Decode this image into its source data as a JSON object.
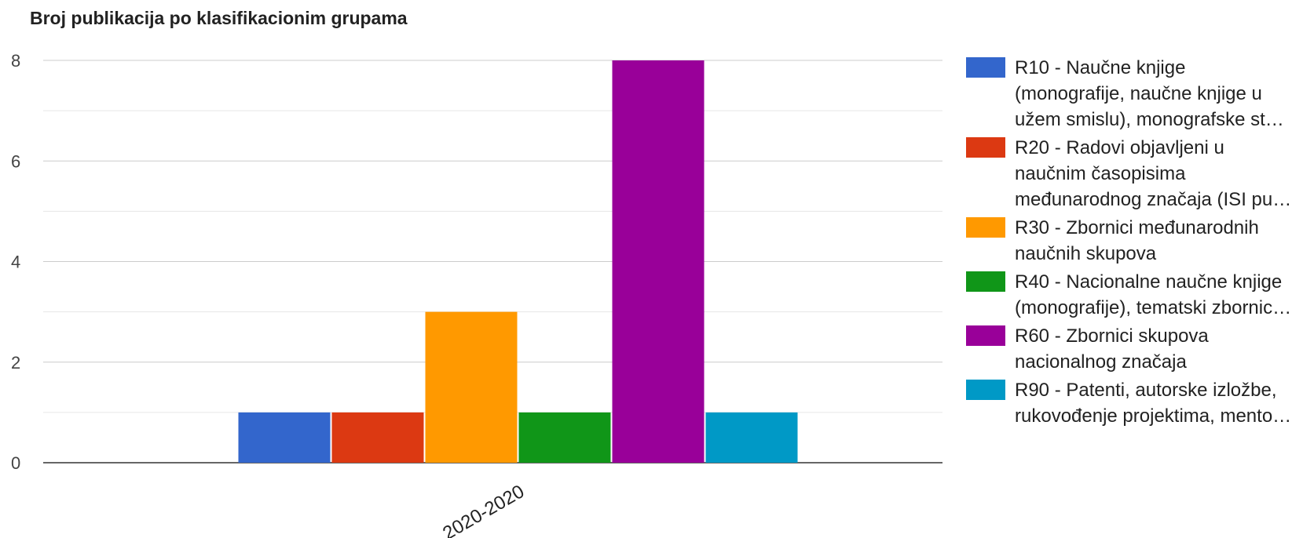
{
  "chart_data": {
    "type": "bar",
    "title": "Broj publikacija po klasifikacionim grupama",
    "categories": [
      "2020-2020"
    ],
    "ylim": [
      0,
      8
    ],
    "yticks": [
      0,
      2,
      4,
      6,
      8
    ],
    "grid": true,
    "legend_position": "right",
    "series": [
      {
        "name": "R10 - Naučne knjige (monografije, naučne knjige u užem smislu), monografske st…",
        "legend_lines": [
          "R10 - Naučne knjige",
          "(monografije, naučne knjige u",
          "užem smislu), monografske st…"
        ],
        "values": [
          1
        ],
        "color": "#3366cc"
      },
      {
        "name": "R20 - Radovi objavljeni u naučnim časopisima međunarodnog značaja (ISI pu…",
        "legend_lines": [
          "R20 - Radovi objavljeni u",
          "naučnim časopisima",
          "međunarodnog značaja (ISI pu…"
        ],
        "values": [
          1
        ],
        "color": "#dc3912"
      },
      {
        "name": "R30 - Zbornici međunarodnih naučnih skupova",
        "legend_lines": [
          "R30 - Zbornici međunarodnih",
          "naučnih skupova"
        ],
        "values": [
          3
        ],
        "color": "#ff9900"
      },
      {
        "name": "R40 - Nacionalne naučne knjige (monografije), tematski zbornic…",
        "legend_lines": [
          "R40 - Nacionalne naučne knjige",
          "(monografije), tematski zbornic…"
        ],
        "values": [
          1
        ],
        "color": "#109618"
      },
      {
        "name": "R60 - Zbornici skupova nacionalnog značaja",
        "legend_lines": [
          "R60 - Zbornici skupova",
          "nacionalnog značaja"
        ],
        "values": [
          8
        ],
        "color": "#990099"
      },
      {
        "name": "R90 - Patenti, autorske izložbe, rukovođenje projektima, mento…",
        "legend_lines": [
          "R90 - Patenti, autorske izložbe,",
          "rukovođenje projektima, mento…"
        ],
        "values": [
          1
        ],
        "color": "#0099c6"
      }
    ]
  }
}
